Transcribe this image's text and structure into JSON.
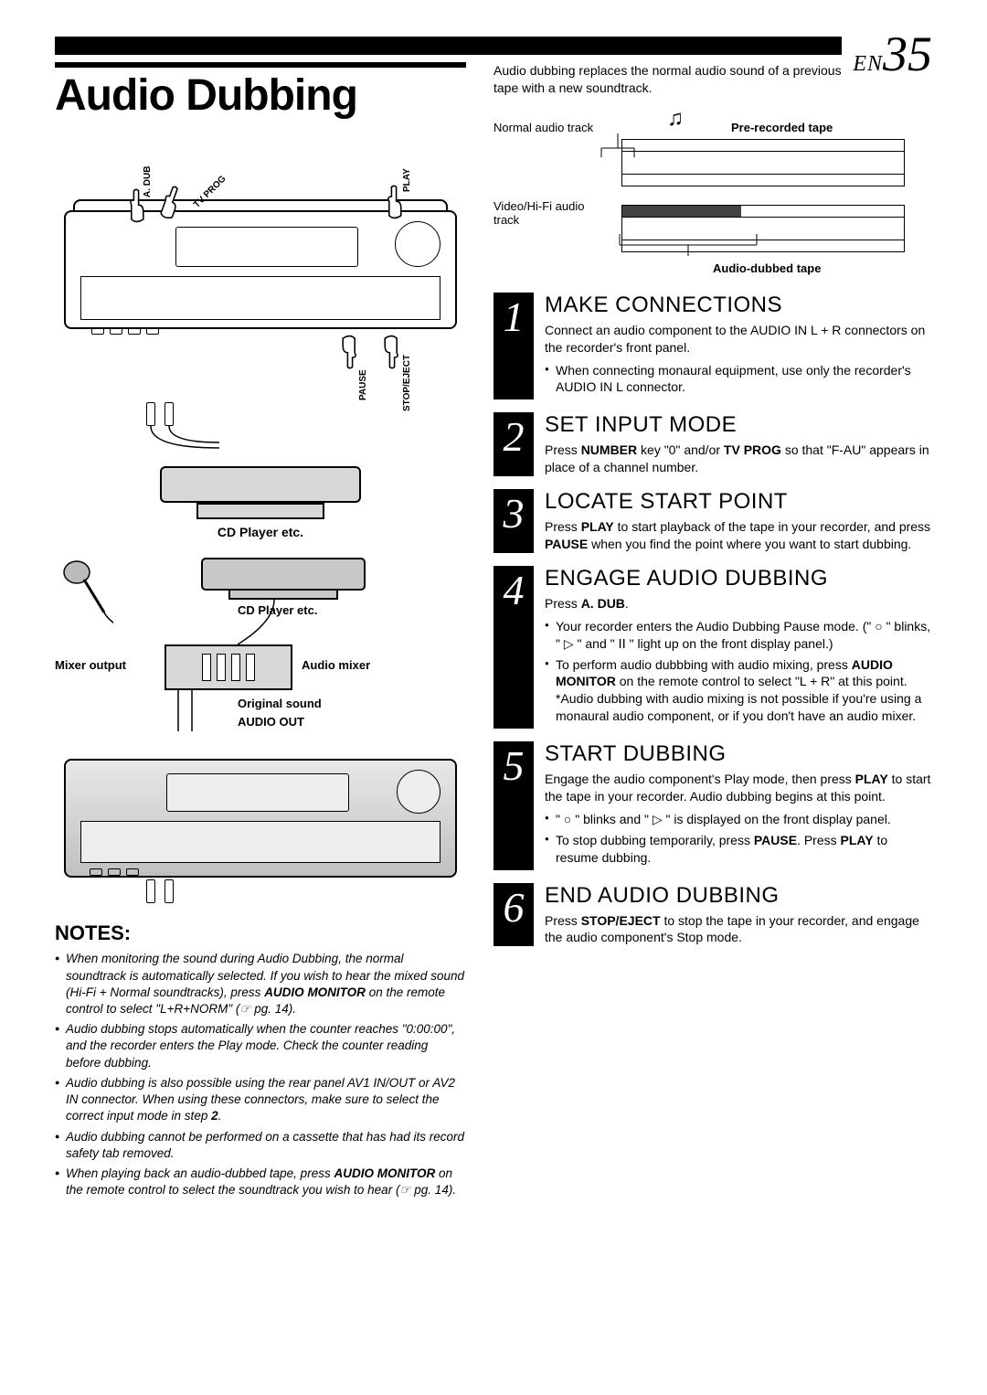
{
  "page": {
    "lang": "EN",
    "number": "35"
  },
  "title": "Audio Dubbing",
  "diagram1": {
    "btn_labels": {
      "adub": "A. DUB",
      "tvprog": "TV PROG",
      "play": "PLAY",
      "pause": "PAUSE",
      "stopeject": "STOP/EJECT"
    },
    "cd_label": "CD Player etc."
  },
  "diagram2": {
    "cd_label": "CD Player etc.",
    "mixer_output": "Mixer output",
    "audio_mixer": "Audio mixer",
    "original_sound": "Original sound",
    "audio_out": "AUDIO OUT"
  },
  "notes_heading": "NOTES:",
  "notes": [
    "When monitoring the sound during Audio Dubbing, the normal soundtrack is automatically selected. If you wish to hear the mixed sound (Hi-Fi + Normal soundtracks), press <b>AUDIO MONITOR</b> on the remote control to select \"L+R+NORM\" (☞ pg. 14).",
    "Audio dubbing stops automatically when the counter reaches \"0:00:00\", and the recorder enters the Play mode. Check the counter reading before dubbing.",
    "Audio dubbing is also possible using the rear panel AV1 IN/OUT or AV2 IN connector. When using these connectors, make sure to select the correct input mode in step <b>2</b>.",
    "Audio dubbing cannot be performed on a cassette that has had its record safety tab removed.",
    "When playing back an audio-dubbed tape, press <b>AUDIO MONITOR</b> on the remote control to select the soundtrack you wish to hear (☞ pg. 14)."
  ],
  "intro": "Audio dubbing replaces the normal audio sound of a previously recorded tape with a new soundtrack.",
  "track_diagram": {
    "normal": "Normal audio track",
    "video": "Video/Hi-Fi audio track",
    "pre": "Pre-recorded tape",
    "dubbed": "Audio-dubbed tape"
  },
  "steps": [
    {
      "n": "1",
      "title": "MAKE CONNECTIONS",
      "body": "Connect an audio component to the AUDIO IN L + R connectors on the recorder's front panel.",
      "bullets": [
        "When connecting monaural equipment, use only the recorder's AUDIO IN L connector."
      ]
    },
    {
      "n": "2",
      "title": "SET INPUT MODE",
      "body": "Press <b>NUMBER</b> key \"0\" and/or <b>TV PROG</b> so that \"F-AU\" appears in place of a channel number.",
      "bullets": []
    },
    {
      "n": "3",
      "title": "LOCATE START POINT",
      "body": "Press <b>PLAY</b> to start playback of the tape in your recorder, and press <b>PAUSE</b> when you find the point where you want to start dubbing.",
      "bullets": []
    },
    {
      "n": "4",
      "title": "ENGAGE AUDIO DUBBING",
      "body": "Press <b>A. DUB</b>.",
      "bullets": [
        "Your recorder enters the Audio Dubbing Pause mode. (\" ○ \" blinks, \" ▷ \" and \" ⅠⅠ \" light up on the front display panel.)",
        "To perform audio dubbbing with audio mixing, press <b>AUDIO MONITOR</b> on the remote control to select \"L + R\" at this point. *Audio dubbing with audio mixing is not possible if you're using a monaural audio component, or if you don't have an audio mixer."
      ]
    },
    {
      "n": "5",
      "title": "START DUBBING",
      "body": "Engage the audio component's Play mode, then press <b>PLAY</b> to start the tape in your recorder. Audio dubbing begins at this point.",
      "bullets": [
        "\" ○ \" blinks and \" ▷ \" is displayed on the front display panel.",
        "To stop dubbing temporarily, press <b>PAUSE</b>. Press <b>PLAY</b> to resume dubbing."
      ]
    },
    {
      "n": "6",
      "title": "END AUDIO DUBBING",
      "body": "Press <b>STOP/EJECT</b> to stop the tape in your recorder, and engage the audio component's Stop mode.",
      "bullets": []
    }
  ]
}
